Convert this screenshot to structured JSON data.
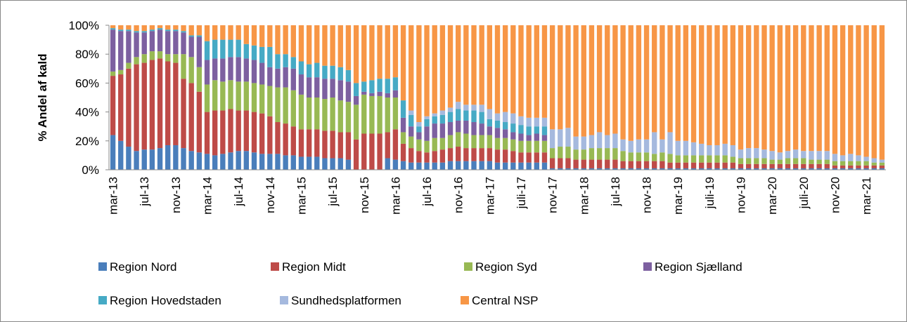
{
  "chart_data": {
    "type": "stacked_bar",
    "y_label": "% Andel af kald",
    "categories": [
      "mar-13",
      null,
      null,
      null,
      "jul-13",
      null,
      null,
      null,
      "nov-13",
      null,
      null,
      null,
      "mar-14",
      null,
      null,
      null,
      "jul-14",
      null,
      null,
      null,
      "nov-14",
      null,
      null,
      null,
      "mar-15",
      null,
      null,
      null,
      "jul-15",
      null,
      null,
      null,
      "nov-15",
      null,
      null,
      null,
      "mar-16",
      null,
      null,
      null,
      "jul-16",
      null,
      null,
      null,
      "nov-16",
      null,
      null,
      null,
      "mar-17",
      null,
      null,
      null,
      "juli-17",
      null,
      null,
      null,
      "nov-17",
      null,
      null,
      null,
      "mar-18",
      null,
      null,
      null,
      "jul-18",
      null,
      null,
      null,
      "nov-18",
      null,
      null,
      null,
      "mar-19",
      null,
      null,
      null,
      "juli-19",
      null,
      null,
      null,
      "nov-19",
      null,
      null,
      null,
      "mar-20",
      null,
      null,
      null,
      "juli-20",
      null,
      null,
      null,
      "nov-20",
      null,
      null,
      null,
      "mar-21",
      null,
      null
    ],
    "ylim": [
      0,
      100
    ],
    "yticks": [
      {
        "value": 0,
        "label": "0%"
      },
      {
        "value": 20,
        "label": "20%"
      },
      {
        "value": 40,
        "label": "40%"
      },
      {
        "value": 60,
        "label": "60%"
      },
      {
        "value": 80,
        "label": "80%"
      },
      {
        "value": 100,
        "label": "100%"
      }
    ],
    "series": [
      {
        "name": "Region Nord",
        "color": "#4a7ebb",
        "values": [
          24,
          20,
          16,
          13,
          14,
          14,
          15,
          17,
          17,
          15,
          13,
          12,
          11,
          10,
          11,
          12,
          13,
          13,
          12,
          11,
          11,
          11,
          10,
          10,
          9,
          9,
          9,
          8,
          8,
          8,
          7,
          0,
          0,
          0,
          0,
          8,
          7,
          6,
          5,
          5,
          5,
          5,
          5,
          6,
          6,
          6,
          6,
          6,
          6,
          5,
          5,
          5,
          5,
          5,
          5,
          5,
          1,
          1,
          1,
          1,
          1,
          1,
          1,
          1,
          1,
          1,
          1,
          1,
          1,
          1,
          1,
          1,
          1,
          1,
          1,
          1,
          1,
          1,
          1,
          1,
          1,
          1,
          1,
          1,
          1,
          1,
          1,
          1,
          1,
          1,
          1,
          1,
          1,
          1,
          1,
          1,
          1,
          1,
          1
        ]
      },
      {
        "name": "Region Midt",
        "color": "#be4b48",
        "values": [
          41,
          46,
          54,
          60,
          60,
          62,
          62,
          58,
          57,
          48,
          47,
          42,
          29,
          31,
          30,
          30,
          28,
          28,
          28,
          28,
          26,
          22,
          22,
          20,
          19,
          19,
          19,
          19,
          19,
          18,
          19,
          21,
          25,
          25,
          25,
          18,
          21,
          12,
          10,
          8,
          7,
          8,
          9,
          9,
          10,
          9,
          9,
          9,
          9,
          9,
          9,
          8,
          7,
          7,
          7,
          7,
          7,
          7,
          7,
          6,
          6,
          6,
          6,
          6,
          6,
          5,
          5,
          5,
          5,
          5,
          5,
          4,
          4,
          4,
          4,
          4,
          4,
          4,
          4,
          4,
          3,
          3,
          3,
          3,
          3,
          3,
          3,
          3,
          3,
          3,
          3,
          3,
          2,
          2,
          2,
          2,
          2,
          2,
          2
        ]
      },
      {
        "name": "Region Syd",
        "color": "#98b954",
        "values": [
          3,
          3,
          4,
          5,
          6,
          6,
          5,
          5,
          6,
          17,
          18,
          17,
          19,
          21,
          20,
          20,
          20,
          20,
          20,
          20,
          21,
          24,
          25,
          25,
          24,
          22,
          22,
          22,
          23,
          22,
          21,
          24,
          27,
          26,
          26,
          24,
          22,
          8,
          8,
          8,
          8,
          9,
          8,
          9,
          10,
          10,
          9,
          9,
          9,
          8,
          8,
          8,
          8,
          8,
          8,
          8,
          7,
          8,
          8,
          7,
          7,
          8,
          8,
          8,
          8,
          7,
          6,
          6,
          6,
          5,
          6,
          6,
          5,
          5,
          5,
          5,
          5,
          5,
          5,
          4,
          4,
          4,
          4,
          4,
          3,
          3,
          4,
          4,
          4,
          3,
          3,
          3,
          3,
          3,
          3,
          3,
          3,
          2,
          2
        ]
      },
      {
        "name": "Region Sjælland",
        "color": "#7d60a0",
        "values": [
          29,
          27,
          22,
          17,
          15,
          14,
          15,
          16,
          16,
          15,
          14,
          21,
          17,
          15,
          16,
          16,
          17,
          16,
          16,
          15,
          13,
          13,
          14,
          15,
          14,
          14,
          14,
          14,
          13,
          14,
          14,
          6,
          2,
          2,
          3,
          3,
          5,
          10,
          7,
          5,
          10,
          10,
          10,
          9,
          8,
          9,
          9,
          8,
          6,
          7,
          6,
          5,
          5,
          4,
          5,
          4,
          0,
          0,
          0,
          0,
          0,
          0,
          0,
          0,
          0,
          0,
          0,
          0,
          0,
          0,
          0,
          0,
          0,
          0,
          0,
          0,
          0,
          0,
          0,
          0,
          0,
          0,
          0,
          0,
          0,
          0,
          0,
          0,
          0,
          0,
          0,
          0,
          0,
          0,
          0,
          0,
          0,
          0,
          0
        ]
      },
      {
        "name": "Region Hovedstaden",
        "color": "#46aac5",
        "values": [
          1,
          1,
          1,
          1,
          1,
          1,
          1,
          1,
          1,
          1,
          1,
          1,
          13,
          13,
          13,
          12,
          12,
          10,
          10,
          11,
          14,
          10,
          9,
          8,
          9,
          9,
          10,
          9,
          9,
          9,
          8,
          9,
          7,
          9,
          9,
          10,
          9,
          12,
          8,
          4,
          5,
          5,
          6,
          7,
          8,
          7,
          8,
          8,
          5,
          5,
          5,
          6,
          6,
          6,
          5,
          6,
          0,
          0,
          0,
          0,
          0,
          0,
          0,
          0,
          0,
          0,
          0,
          0,
          0,
          0,
          0,
          0,
          0,
          0,
          0,
          0,
          0,
          0,
          0,
          0,
          0,
          0,
          0,
          0,
          0,
          0,
          0,
          0,
          0,
          0,
          0,
          0,
          0,
          0,
          0,
          0,
          0,
          0,
          0
        ]
      },
      {
        "name": "Sundhedsplatformen",
        "color": "#a5b9de",
        "values": [
          0,
          0,
          0,
          0,
          0,
          0,
          0,
          0,
          0,
          0,
          0,
          0,
          0,
          0,
          0,
          0,
          0,
          0,
          0,
          0,
          0,
          0,
          0,
          0,
          0,
          0,
          0,
          0,
          0,
          0,
          0,
          0,
          0,
          0,
          0,
          0,
          0,
          0,
          3,
          3,
          2,
          2,
          3,
          3,
          5,
          4,
          4,
          5,
          7,
          5,
          7,
          7,
          6,
          6,
          6,
          6,
          13,
          12,
          13,
          9,
          9,
          9,
          11,
          9,
          10,
          8,
          8,
          9,
          9,
          15,
          9,
          15,
          10,
          10,
          9,
          8,
          7,
          7,
          8,
          8,
          6,
          7,
          7,
          6,
          6,
          5,
          5,
          6,
          5,
          6,
          6,
          6,
          5,
          4,
          5,
          4,
          3,
          3,
          2
        ]
      },
      {
        "name": "Central NSP",
        "color": "#f79646",
        "values": [
          2,
          3,
          3,
          4,
          4,
          3,
          2,
          3,
          3,
          4,
          7,
          7,
          11,
          10,
          10,
          10,
          10,
          13,
          14,
          15,
          15,
          20,
          20,
          22,
          25,
          27,
          26,
          28,
          28,
          29,
          31,
          40,
          39,
          38,
          37,
          37,
          36,
          52,
          59,
          67,
          63,
          61,
          59,
          57,
          53,
          55,
          55,
          55,
          58,
          61,
          60,
          61,
          63,
          64,
          64,
          64,
          72,
          72,
          71,
          77,
          77,
          76,
          74,
          76,
          75,
          79,
          80,
          79,
          79,
          74,
          79,
          74,
          80,
          80,
          81,
          82,
          83,
          83,
          82,
          83,
          86,
          85,
          85,
          86,
          87,
          88,
          87,
          86,
          87,
          87,
          87,
          87,
          89,
          90,
          89,
          90,
          91,
          92,
          93
        ]
      }
    ]
  }
}
